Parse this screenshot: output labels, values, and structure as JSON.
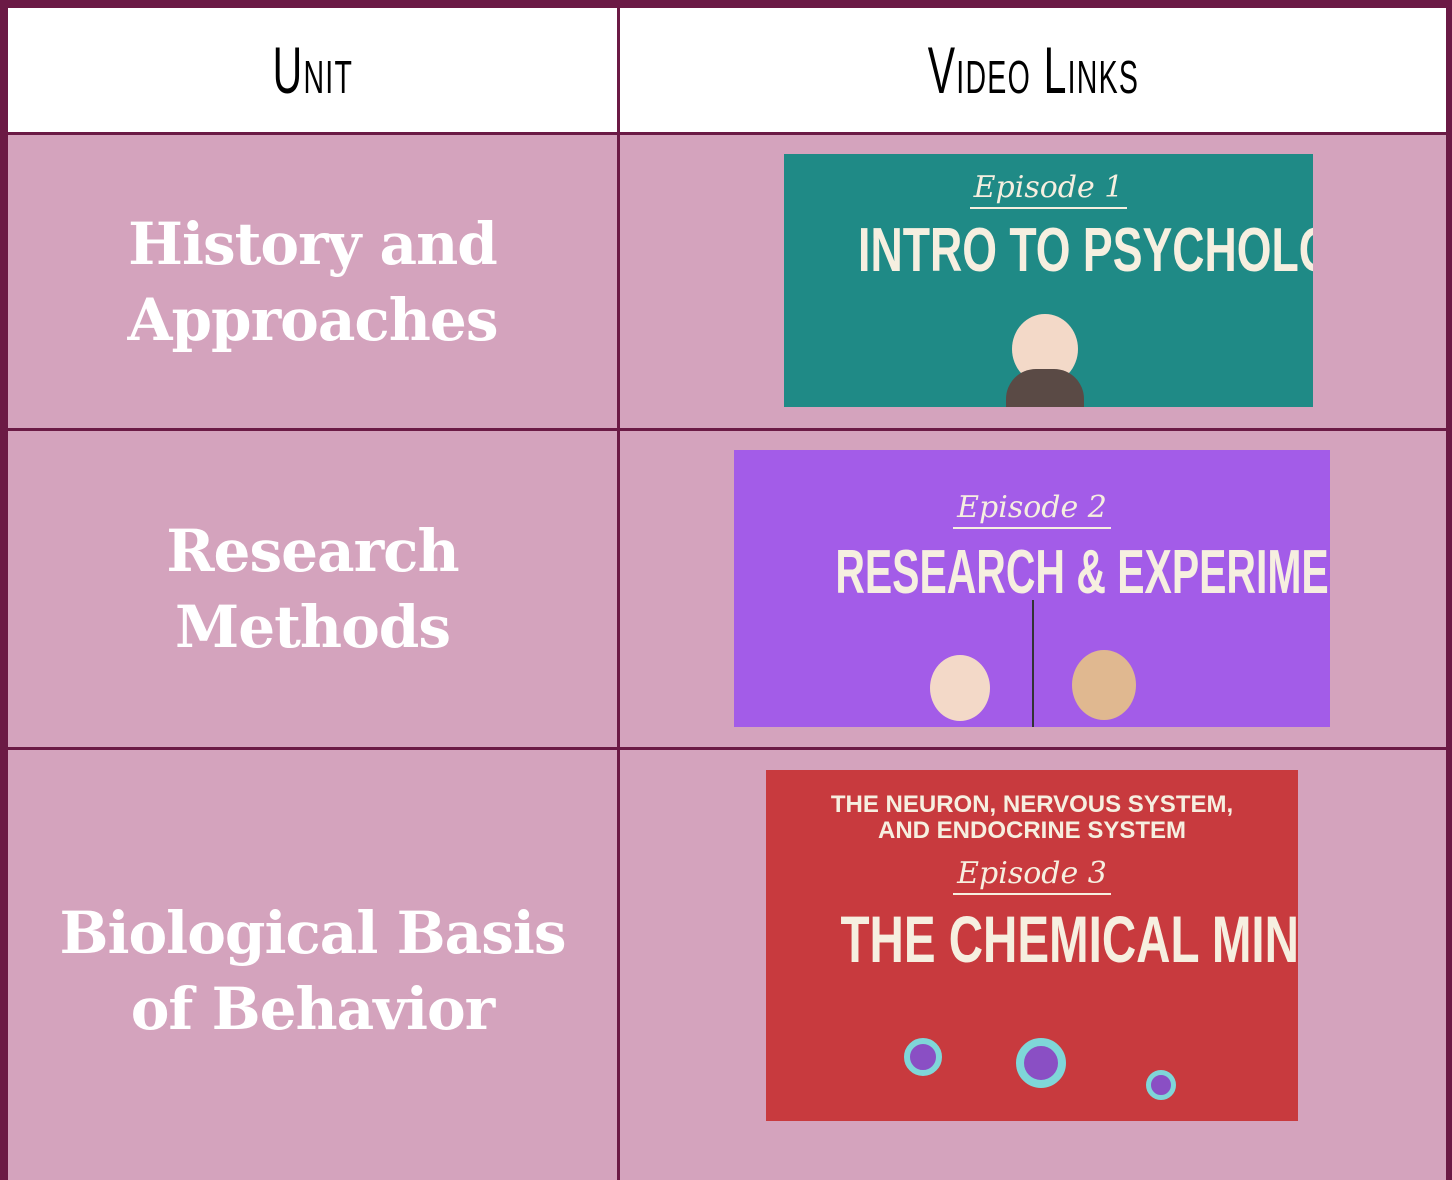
{
  "table": {
    "header": [
      "Unit",
      "Video Links"
    ],
    "rows": [
      {
        "unit": "History and Approaches",
        "video": {
          "episode": "Episode 1",
          "title": "INTRO TO PSYCHOLOGY"
        }
      },
      {
        "unit": "Research Methods",
        "video": {
          "episode": "Episode 2",
          "title": "RESEARCH & EXPERIMENTATION"
        }
      },
      {
        "unit": "Biological Basis of Behavior",
        "video": {
          "subtitle": [
            "THE NEURON, NERVOUS SYSTEM,",
            "AND ENDOCRINE SYSTEM"
          ],
          "episode": "Episode 3",
          "title": "THE CHEMICAL MIND"
        }
      }
    ]
  }
}
